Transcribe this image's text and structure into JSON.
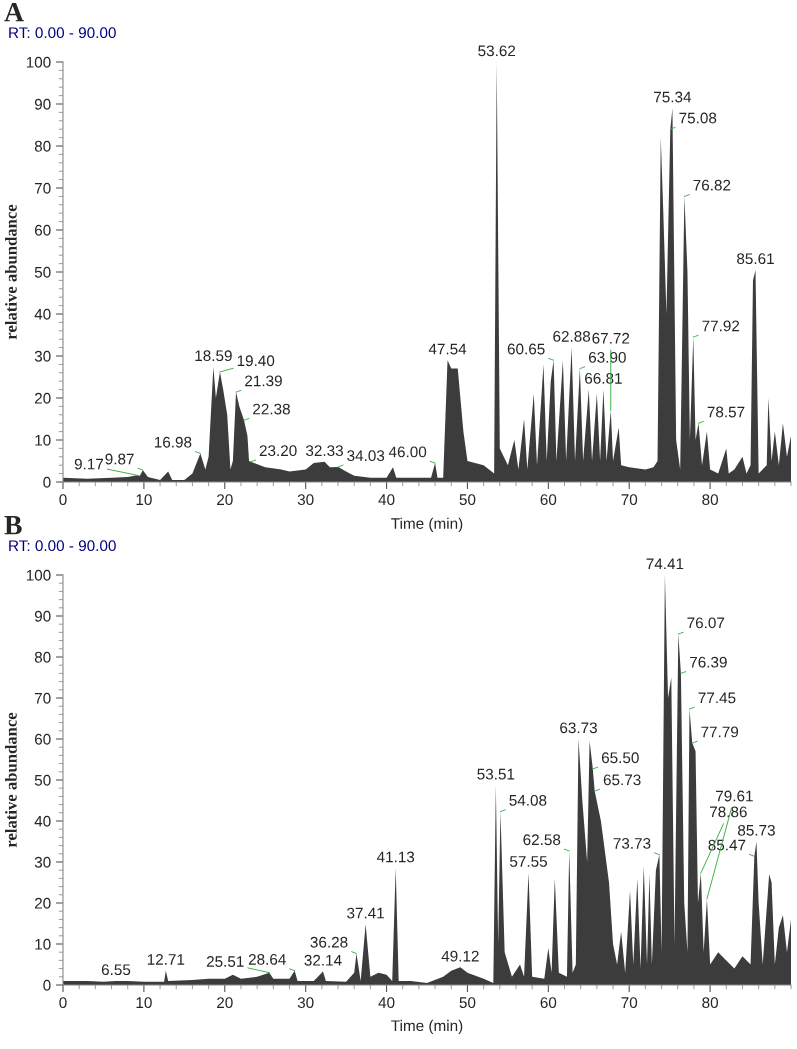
{
  "chart_data": [
    {
      "type": "area",
      "title": "A",
      "subtitle": "RT: 0.00 - 90.00",
      "xlabel": "Time (min)",
      "ylabel": "relative abundance",
      "xlim": [
        0,
        90
      ],
      "ylim": [
        0,
        100
      ],
      "xticks": [
        0,
        10,
        20,
        30,
        40,
        50,
        60,
        70,
        80
      ],
      "yticks": [
        0,
        10,
        20,
        30,
        40,
        50,
        60,
        70,
        80,
        90,
        100
      ],
      "series": [
        {
          "color": "#1a1a1a",
          "x": [
            0,
            3,
            6,
            8,
            9.17,
            9.5,
            9.87,
            10.5,
            12,
            13,
            13.5,
            15,
            16,
            16.98,
            17.6,
            18,
            18.59,
            18.9,
            19.4,
            19.8,
            20.3,
            20.7,
            21.0,
            21.39,
            21.8,
            22.38,
            22.8,
            23.0,
            23.2,
            25,
            27,
            28,
            30,
            31,
            32.33,
            33,
            34.03,
            35,
            36,
            38,
            40,
            40.8,
            41.2,
            44,
            45.5,
            46.0,
            46.3,
            47,
            47.54,
            48,
            48.8,
            49.5,
            50,
            52,
            53.3,
            53.62,
            54,
            55,
            55.8,
            56.3,
            57,
            57.4,
            58.2,
            58.6,
            59.4,
            59.8,
            60.3,
            60.65,
            61,
            61.8,
            62.2,
            62.88,
            63.3,
            63.9,
            64.3,
            65,
            65.4,
            66,
            66.4,
            66.81,
            67.2,
            67.72,
            68,
            68.7,
            69,
            70,
            72,
            73,
            73.5,
            73.9,
            74.2,
            74.6,
            75.08,
            75.34,
            75.8,
            76.3,
            76.82,
            77.2,
            77.5,
            77.92,
            78.2,
            78.57,
            79,
            79.6,
            80,
            81,
            82,
            82.3,
            83,
            84,
            84.5,
            85,
            85.3,
            85.61,
            86,
            87,
            87.2,
            87.6,
            88,
            88.5,
            89,
            89.5,
            90
          ],
          "values": [
            1,
            0.8,
            1,
            1.2,
            1.6,
            1.5,
            2.8,
            1.2,
            0.5,
            2.5,
            0.5,
            0.5,
            2,
            6.8,
            3,
            6,
            27.4,
            20,
            26.2,
            22,
            16,
            3,
            5,
            21.4,
            18,
            14.7,
            11,
            5,
            4.8,
            3.5,
            3,
            2.5,
            3,
            4.5,
            4.8,
            3.5,
            3.6,
            2.5,
            1.5,
            1,
            1,
            3.5,
            1,
            1,
            1,
            4.5,
            1,
            1,
            29,
            27,
            27,
            12,
            5,
            4,
            2,
            100,
            8,
            4,
            10,
            3,
            15,
            3,
            21,
            4,
            28,
            5,
            24,
            29,
            5,
            29,
            5,
            32,
            5,
            27,
            5,
            22,
            5,
            21,
            5,
            22,
            5,
            17,
            5,
            13,
            4,
            3.5,
            3,
            3.5,
            5,
            82,
            65,
            40,
            84,
            89,
            10,
            3,
            68,
            50,
            10,
            34.5,
            10,
            14,
            4,
            12,
            3,
            2,
            8,
            2,
            3,
            6,
            2,
            4,
            48,
            50.5,
            2,
            4,
            20,
            5,
            12,
            4,
            14,
            6,
            11
          ]
        }
      ],
      "annotations": [
        {
          "text": "9.17",
          "x": 9.17,
          "y": 1.6
        },
        {
          "text": "9.87",
          "x": 9.87,
          "y": 2.8
        },
        {
          "text": "16.98",
          "x": 16.98,
          "y": 6.8
        },
        {
          "text": "18.59",
          "x": 18.59,
          "y": 27.4
        },
        {
          "text": "19.40",
          "x": 19.4,
          "y": 26.2
        },
        {
          "text": "21.39",
          "x": 21.39,
          "y": 21.4
        },
        {
          "text": "22.38",
          "x": 22.38,
          "y": 14.7
        },
        {
          "text": "23.20",
          "x": 23.2,
          "y": 4.8
        },
        {
          "text": "32.33",
          "x": 32.33,
          "y": 4.8
        },
        {
          "text": "34.03",
          "x": 34.03,
          "y": 3.6
        },
        {
          "text": "46.00",
          "x": 46.0,
          "y": 4.5
        },
        {
          "text": "47.54",
          "x": 47.54,
          "y": 29
        },
        {
          "text": "53.62",
          "x": 53.62,
          "y": 100
        },
        {
          "text": "60.65",
          "x": 60.65,
          "y": 29
        },
        {
          "text": "62.88",
          "x": 62.88,
          "y": 32
        },
        {
          "text": "63.90",
          "x": 63.9,
          "y": 27
        },
        {
          "text": "66.81",
          "x": 66.81,
          "y": 22
        },
        {
          "text": "67.72",
          "x": 67.72,
          "y": 17
        },
        {
          "text": "75.08",
          "x": 75.08,
          "y": 84
        },
        {
          "text": "75.34",
          "x": 75.34,
          "y": 89
        },
        {
          "text": "76.82",
          "x": 76.82,
          "y": 68
        },
        {
          "text": "77.92",
          "x": 77.92,
          "y": 34.5
        },
        {
          "text": "78.57",
          "x": 78.57,
          "y": 14
        },
        {
          "text": "85.61",
          "x": 85.61,
          "y": 50.5
        }
      ]
    },
    {
      "type": "area",
      "title": "B",
      "subtitle": "RT: 0.00 - 90.00",
      "xlabel": "Time (min)",
      "ylabel": "relative abundance",
      "xlim": [
        0,
        90
      ],
      "ylim": [
        0,
        100
      ],
      "xticks": [
        0,
        10,
        20,
        30,
        40,
        50,
        60,
        70,
        80
      ],
      "yticks": [
        0,
        10,
        20,
        30,
        40,
        50,
        60,
        70,
        80,
        90,
        100
      ],
      "series": [
        {
          "color": "#1a1a1a",
          "x": [
            0,
            3,
            5,
            6.55,
            8,
            10,
            12.5,
            12.71,
            13,
            16,
            18,
            20,
            21,
            22,
            24,
            25.51,
            26,
            28,
            28.64,
            29,
            31,
            32.14,
            32.5,
            35,
            36,
            36.28,
            36.8,
            37.41,
            38,
            39,
            40,
            40.7,
            41.13,
            41.5,
            43,
            45,
            47,
            48,
            49.12,
            50,
            52,
            53.2,
            53.51,
            53.8,
            54.08,
            54.6,
            55.5,
            56.5,
            57,
            57.55,
            58,
            59.5,
            60,
            60.4,
            60.8,
            61.3,
            62.3,
            62.58,
            63,
            63.4,
            63.73,
            64.2,
            64.8,
            65.1,
            65.5,
            65.73,
            66.5,
            67.5,
            68,
            68.5,
            69,
            69.5,
            70.1,
            70.5,
            71,
            71.4,
            71.8,
            72.2,
            72.5,
            72.8,
            73.3,
            73.73,
            74,
            74.41,
            74.8,
            75.2,
            75.6,
            76.07,
            76.39,
            76.8,
            77.2,
            77.45,
            77.79,
            78.2,
            78.5,
            78.86,
            79.2,
            79.61,
            80,
            81,
            82,
            83,
            84,
            85,
            85.47,
            85.73,
            86,
            86.5,
            87.3,
            87.6,
            88,
            88.5,
            89,
            89.5,
            90
          ],
          "values": [
            1,
            1,
            0.8,
            1,
            1,
            0.8,
            0.8,
            3.5,
            1,
            1.2,
            1.5,
            1.5,
            2.5,
            1.5,
            2,
            3,
            1.5,
            1.5,
            3.5,
            1,
            1,
            3.3,
            1,
            0.8,
            3,
            7.7,
            1,
            14.8,
            2,
            3,
            2.5,
            1,
            28.5,
            1,
            1,
            0.5,
            2,
            3.5,
            4.3,
            3,
            1.5,
            0.5,
            48.7,
            10,
            42.3,
            8,
            2,
            5,
            2,
            27.4,
            2,
            1.5,
            9,
            3,
            26,
            3,
            2,
            32.7,
            3,
            5,
            60,
            45,
            30,
            59.5,
            52.7,
            47.3,
            40,
            25,
            10,
            5,
            13,
            3,
            23,
            5,
            26,
            4,
            29,
            5,
            27,
            5,
            28,
            31.8,
            8,
            100,
            70,
            75,
            10,
            85.6,
            76,
            20,
            8,
            67.3,
            59,
            57,
            20,
            27.3,
            8,
            21,
            5,
            8,
            6,
            4,
            7,
            5,
            31.4,
            35,
            20,
            5,
            27,
            25,
            5,
            14,
            17,
            8,
            16
          ]
        }
      ],
      "annotations": [
        {
          "text": "6.55",
          "x": 6.55,
          "y": 1
        },
        {
          "text": "12.71",
          "x": 12.71,
          "y": 3.5
        },
        {
          "text": "25.51",
          "x": 25.51,
          "y": 3
        },
        {
          "text": "28.64",
          "x": 28.64,
          "y": 3.5
        },
        {
          "text": "32.14",
          "x": 32.14,
          "y": 3.3
        },
        {
          "text": "36.28",
          "x": 36.28,
          "y": 7.7
        },
        {
          "text": "37.41",
          "x": 37.41,
          "y": 14.8
        },
        {
          "text": "41.13",
          "x": 41.13,
          "y": 28.5
        },
        {
          "text": "49.12",
          "x": 49.12,
          "y": 4.3
        },
        {
          "text": "53.51",
          "x": 53.51,
          "y": 48.7
        },
        {
          "text": "54.08",
          "x": 54.08,
          "y": 42.3
        },
        {
          "text": "57.55",
          "x": 57.55,
          "y": 27.4
        },
        {
          "text": "62.58",
          "x": 62.58,
          "y": 32.7
        },
        {
          "text": "63.73",
          "x": 63.73,
          "y": 60
        },
        {
          "text": "65.50",
          "x": 65.5,
          "y": 52.7
        },
        {
          "text": "65.73",
          "x": 65.73,
          "y": 47.3
        },
        {
          "text": "73.73",
          "x": 73.73,
          "y": 31.8
        },
        {
          "text": "74.41",
          "x": 74.41,
          "y": 100
        },
        {
          "text": "76.07",
          "x": 76.07,
          "y": 85.6
        },
        {
          "text": "76.39",
          "x": 76.39,
          "y": 76
        },
        {
          "text": "77.45",
          "x": 77.45,
          "y": 67.3
        },
        {
          "text": "77.79",
          "x": 77.79,
          "y": 59
        },
        {
          "text": "78.86",
          "x": 78.86,
          "y": 27.3
        },
        {
          "text": "79.61",
          "x": 79.61,
          "y": 21
        },
        {
          "text": "85.47",
          "x": 85.47,
          "y": 31.4
        },
        {
          "text": "85.73",
          "x": 85.73,
          "y": 35
        }
      ]
    }
  ]
}
